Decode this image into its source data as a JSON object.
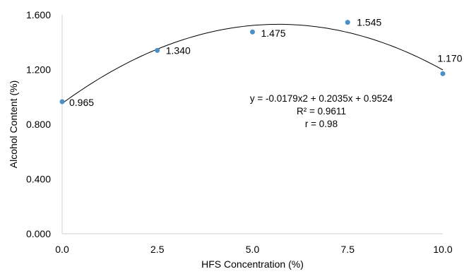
{
  "chart_data": {
    "type": "scatter",
    "title": "",
    "xlabel": "HFS Concentration (%)",
    "ylabel": "Alcohol Content (%)",
    "xlim": [
      0,
      10
    ],
    "ylim": [
      0,
      1.6
    ],
    "x_ticks": [
      {
        "value": 0,
        "label": "0.0"
      },
      {
        "value": 2.5,
        "label": "2.5"
      },
      {
        "value": 5,
        "label": "5.0"
      },
      {
        "value": 7.5,
        "label": "7.5"
      },
      {
        "value": 10,
        "label": "10.0"
      }
    ],
    "y_ticks": [
      {
        "value": 0,
        "label": "0.000"
      },
      {
        "value": 0.4,
        "label": "0.400"
      },
      {
        "value": 0.8,
        "label": "0.800"
      },
      {
        "value": 1.2,
        "label": "1.200"
      },
      {
        "value": 1.6,
        "label": "1.600"
      }
    ],
    "grid": false,
    "legend": "none",
    "marker_color": "#4a90c8",
    "trendline_color": "#000000",
    "series": [
      {
        "x": [
          0,
          2.5,
          5,
          7.5,
          10
        ],
        "y": [
          0.965,
          1.34,
          1.475,
          1.545,
          1.17
        ],
        "labels": [
          "0.965",
          "1.340",
          "1.475",
          "1.545",
          "1.170"
        ]
      }
    ],
    "trendline": {
      "type": "polynomial",
      "order": 2,
      "coefficients": [
        -0.0179,
        0.2035,
        0.9524
      ]
    },
    "annotations": [
      "y = -0.0179x2 + 0.2035x + 0.9524",
      "R² = 0.9611",
      "r = 0.98"
    ]
  }
}
